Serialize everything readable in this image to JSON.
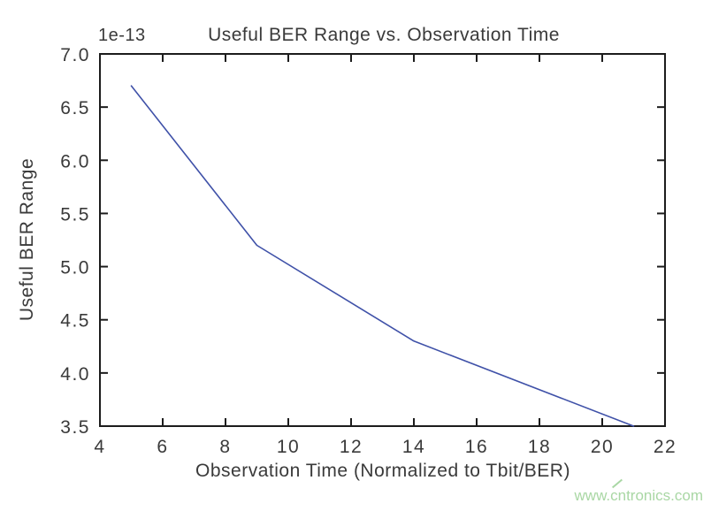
{
  "chart_data": {
    "type": "line",
    "title": "Useful BER Range vs. Observation Time",
    "xlabel": "Observation Time (Normalized to Tbit/BER)",
    "ylabel": "Useful BER Range",
    "y_offset_label": "1e-13",
    "xlim": [
      4,
      22
    ],
    "ylim": [
      3.5,
      7.0
    ],
    "xticks": [
      4,
      6,
      8,
      10,
      12,
      14,
      16,
      18,
      20,
      22
    ],
    "xtick_labels": [
      "4",
      "6",
      "8",
      "10",
      "12",
      "14",
      "16",
      "18",
      "20",
      "22"
    ],
    "yticks": [
      3.5,
      4.0,
      4.5,
      5.0,
      5.5,
      6.0,
      6.5,
      7.0
    ],
    "ytick_labels": [
      "3.5",
      "4.0",
      "4.5",
      "5.0",
      "5.5",
      "6.0",
      "6.5",
      "7.0"
    ],
    "grid": false,
    "legend": null,
    "series": [
      {
        "name": "Useful BER Range",
        "x": [
          5,
          9,
          14,
          21
        ],
        "y": [
          6.7,
          5.2,
          4.3,
          3.5
        ],
        "y_unit_scale": "1e-13",
        "color": "#3f51a8"
      }
    ],
    "axis_color": "#1c1c1c",
    "text_color": "#3a3a3a"
  },
  "watermark": {
    "text": "www.cntronics.com",
    "color": "#a9d7a4"
  }
}
